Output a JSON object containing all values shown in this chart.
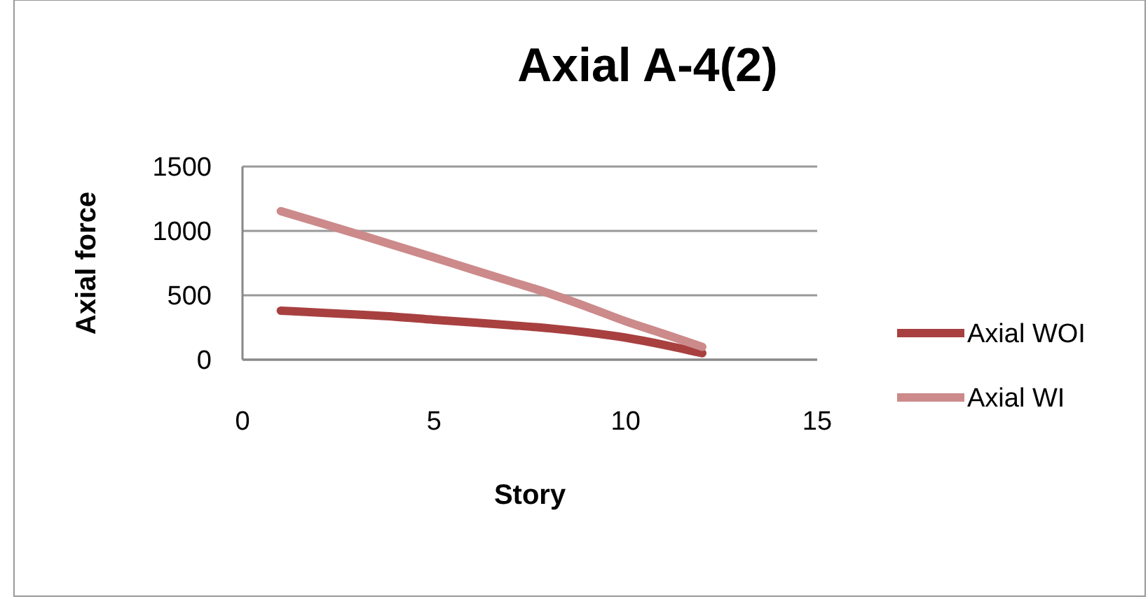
{
  "chart_data": {
    "type": "line",
    "title": "Axial A-4(2)",
    "xlabel": "Story",
    "ylabel": "Axial force",
    "x": [
      1,
      2,
      3,
      4,
      5,
      6,
      7,
      8,
      9,
      10,
      11,
      12
    ],
    "series": [
      {
        "name": "Axial WOI",
        "color": "#a84040",
        "values": [
          381,
          365,
          350,
          333,
          310,
          290,
          268,
          244,
          212,
          171,
          115,
          50
        ]
      },
      {
        "name": "Axial WI",
        "color": "#cc8a8a",
        "values": [
          1154,
          1065,
          975,
          885,
          793,
          700,
          608,
          515,
          410,
          298,
          200,
          100
        ]
      }
    ],
    "xlim": [
      0,
      15
    ],
    "xticks": [
      0,
      5,
      10,
      15
    ],
    "ylim": [
      0,
      1500
    ],
    "yticks": [
      0,
      500,
      1000,
      1500
    ],
    "grid": "y",
    "legend": "right",
    "marker": "none",
    "line_style": "solid"
  }
}
